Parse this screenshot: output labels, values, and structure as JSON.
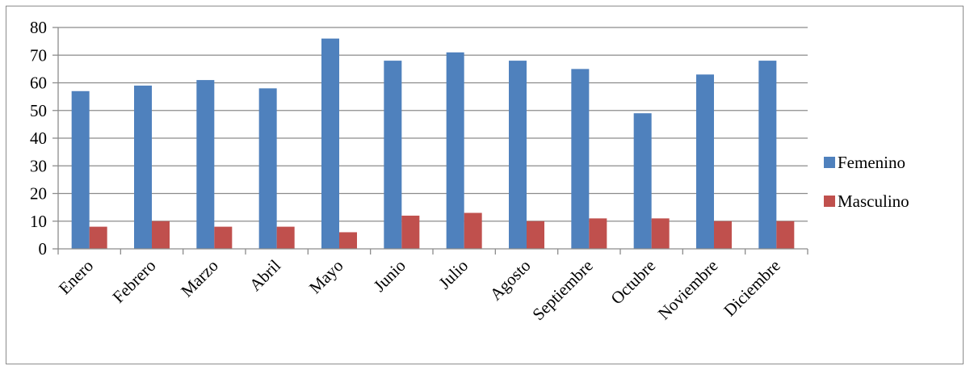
{
  "chart_data": {
    "type": "bar",
    "title": "",
    "xlabel": "",
    "ylabel": "",
    "ylim": [
      0,
      80
    ],
    "yticks": [
      0,
      10,
      20,
      30,
      40,
      50,
      60,
      70,
      80
    ],
    "grid": true,
    "legend_position": "right",
    "categories": [
      "Enero",
      "Febrero",
      "Marzo",
      "Abril",
      "Mayo",
      "Junio",
      "Julio",
      "Agosto",
      "Septiembre",
      "Octubre",
      "Noviembre",
      "Diciembre"
    ],
    "series": [
      {
        "name": "Femenino",
        "color": "#4f81bd",
        "values": [
          57,
          59,
          61,
          58,
          76,
          68,
          71,
          68,
          65,
          49,
          63,
          68
        ]
      },
      {
        "name": "Masculino",
        "color": "#c0504d",
        "values": [
          8,
          10,
          8,
          8,
          6,
          12,
          13,
          10,
          11,
          11,
          10,
          10
        ]
      }
    ]
  }
}
